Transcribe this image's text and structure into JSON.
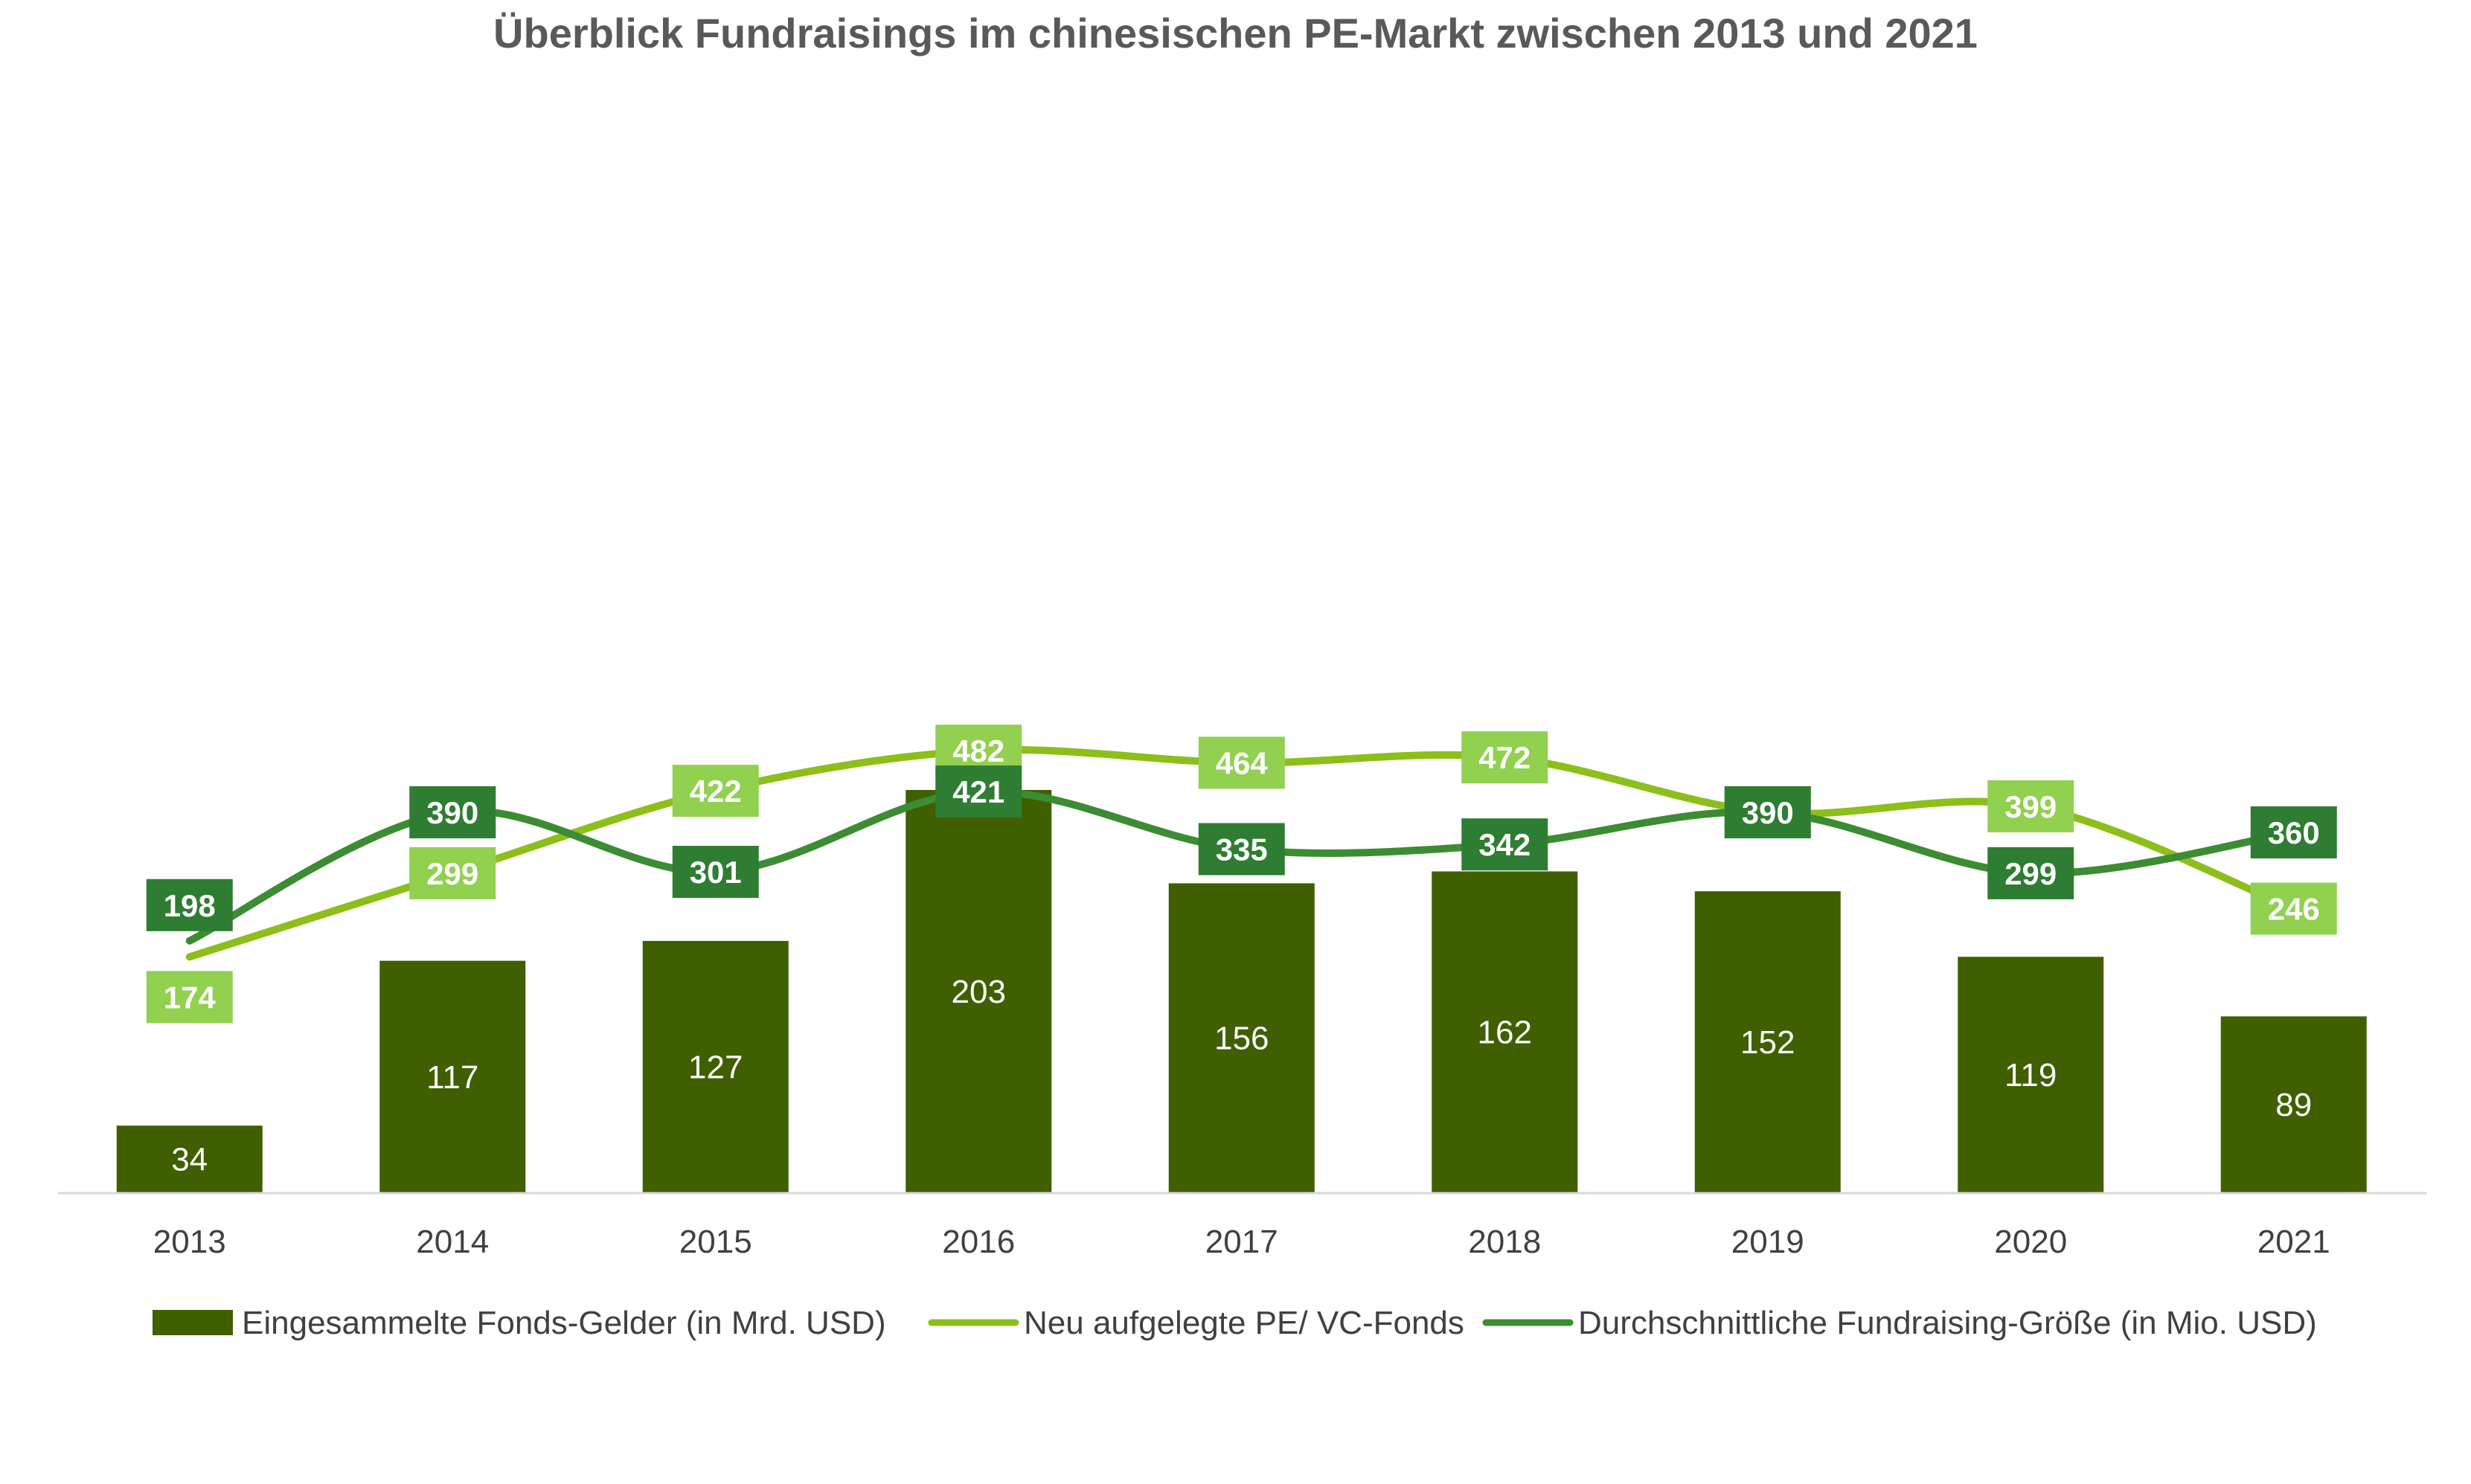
{
  "colors": {
    "bars": "#3f5f00",
    "series_light": "#8cbf1a",
    "series_light_label": "#92d050",
    "series_dark": "#3b8c32",
    "series_dark_label": "#2e7d32",
    "axis": "#d9d9d9"
  },
  "chart_data": {
    "type": "bar",
    "title": "Überblick Fundraisings im chinesischen PE-Markt zwischen 2013 und 2021",
    "categories": [
      "2013",
      "2014",
      "2015",
      "2016",
      "2017",
      "2018",
      "2019",
      "2020",
      "2021"
    ],
    "series": [
      {
        "name": "Eingesammelte Fonds-Gelder (in Mrd. USD)",
        "type": "bar",
        "values": [
          34,
          117,
          127,
          203,
          156,
          162,
          152,
          119,
          89
        ]
      },
      {
        "name": "Neu aufgelegte PE/ VC-Fonds",
        "type": "line",
        "smooth": true,
        "values": [
          174,
          299,
          422,
          482,
          464,
          472,
          390,
          399,
          246
        ]
      },
      {
        "name": "Durchschnittliche Fundraising-Größe (in Mio. USD)",
        "type": "line",
        "smooth": true,
        "values": [
          198,
          390,
          301,
          421,
          335,
          342,
          390,
          299,
          360
        ]
      }
    ],
    "grid": false,
    "legend": "bottom"
  }
}
